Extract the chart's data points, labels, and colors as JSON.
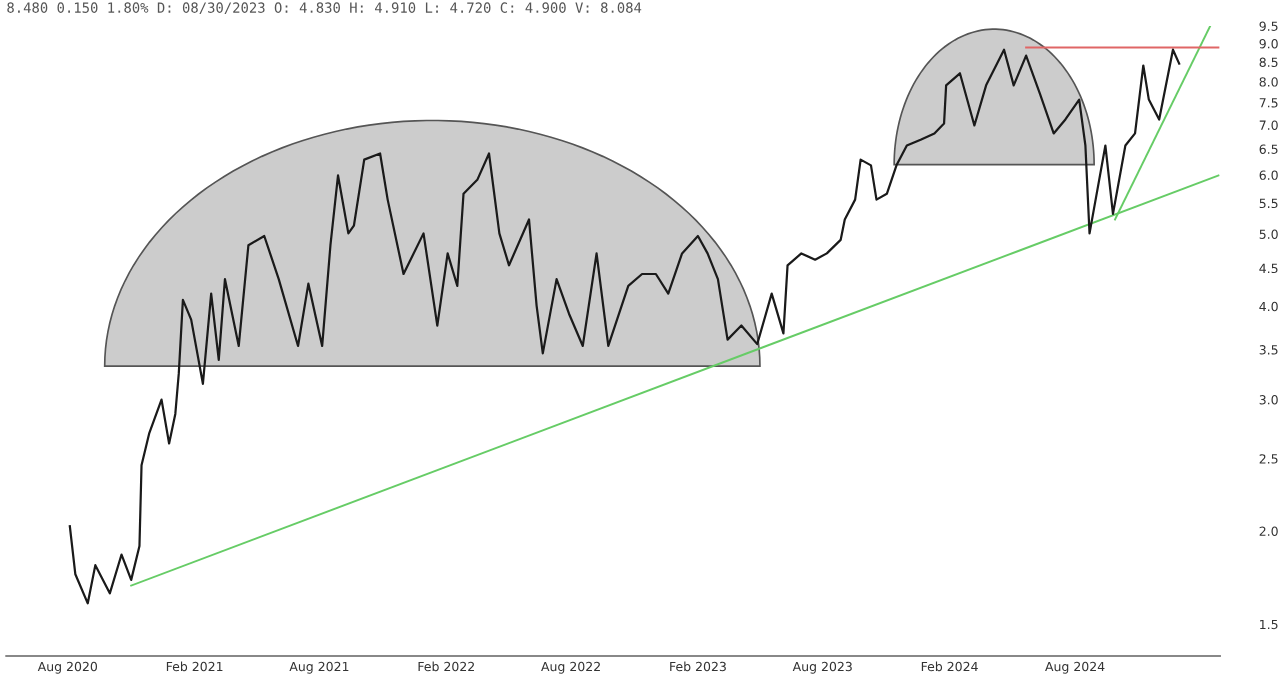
{
  "chart_data": {
    "type": "line",
    "title": "8.480 0.150 1.80% D: 08/30/2023 O: 4.830 H: 4.910 L: 4.720 C: 4.900 V: 8.084",
    "log": true,
    "grid": false,
    "legend": false,
    "marker": "none",
    "line_style": "solid",
    "xlim": [
      "2020-05-04",
      "2025-02-27"
    ],
    "xticks": [
      {
        "value": "2020-08-01",
        "label": "Aug 2020"
      },
      {
        "value": "2021-02-01",
        "label": "Feb 2021"
      },
      {
        "value": "2021-08-01",
        "label": "Aug 2021"
      },
      {
        "value": "2022-02-01",
        "label": "Feb 2022"
      },
      {
        "value": "2022-08-01",
        "label": "Aug 2022"
      },
      {
        "value": "2023-02-01",
        "label": "Feb 2023"
      },
      {
        "value": "2023-08-01",
        "label": "Aug 2023"
      },
      {
        "value": "2024-02-01",
        "label": "Feb 2024"
      },
      {
        "value": "2024-08-01",
        "label": "Aug 2024"
      }
    ],
    "ylim": [
      1.36,
      9.5
    ],
    "yticks": [
      1.5,
      {
        "value": 2,
        "label": "2.0"
      },
      2.5,
      {
        "value": 3,
        "label": "3.0"
      },
      3.5,
      {
        "value": 4,
        "label": "4.0"
      },
      4.5,
      {
        "value": 5,
        "label": "5.0"
      },
      5.5,
      {
        "value": 6,
        "label": "6.0"
      },
      6.5,
      {
        "value": 7,
        "label": "7.0"
      },
      7.5,
      {
        "value": 8,
        "label": "8.0"
      },
      8.5,
      {
        "value": 9,
        "label": "9.0"
      },
      9.5
    ],
    "series": [
      {
        "color": "#1a1a1a",
        "x": [
          "2020-08-04",
          "2020-08-12",
          "2020-08-30",
          "2020-09-10",
          "2020-10-01",
          "2020-10-18",
          "2020-11-01",
          "2020-11-13",
          "2020-11-16",
          "2020-11-27",
          "2020-12-15",
          "2020-12-26",
          "2021-01-04",
          "2021-01-09",
          "2021-01-15",
          "2021-01-27",
          "2021-02-13",
          "2021-02-25",
          "2021-03-08",
          "2021-03-17",
          "2021-04-06",
          "2021-04-20",
          "2021-05-13",
          "2021-06-03",
          "2021-07-01",
          "2021-07-16",
          "2021-08-05",
          "2021-08-17",
          "2021-08-28",
          "2021-09-12",
          "2021-09-20",
          "2021-10-05",
          "2021-10-28",
          "2021-11-08",
          "2021-12-01",
          "2021-12-30",
          "2022-01-19",
          "2022-02-03",
          "2022-02-17",
          "2022-02-26",
          "2022-03-18",
          "2022-04-04",
          "2022-04-19",
          "2022-05-03",
          "2022-06-01",
          "2022-06-12",
          "2022-06-21",
          "2022-07-11",
          "2022-07-29",
          "2022-08-18",
          "2022-09-07",
          "2022-09-24",
          "2022-10-23",
          "2022-11-12",
          "2022-12-02",
          "2022-12-20",
          "2023-01-09",
          "2023-02-01",
          "2023-02-15",
          "2023-03-02",
          "2023-03-16",
          "2023-04-05",
          "2023-04-28",
          "2023-05-19",
          "2023-06-05",
          "2023-06-11",
          "2023-07-01",
          "2023-07-21",
          "2023-08-07",
          "2023-08-27",
          "2023-09-02",
          "2023-09-17",
          "2023-09-25",
          "2023-10-10",
          "2023-10-18",
          "2023-11-02",
          "2023-11-16",
          "2023-12-01",
          "2023-12-21",
          "2024-01-10",
          "2024-01-24",
          "2024-01-27",
          "2024-02-16",
          "2024-03-08",
          "2024-03-25",
          "2024-04-20",
          "2024-05-04",
          "2024-05-22",
          "2024-06-11",
          "2024-07-01",
          "2024-07-18",
          "2024-08-07",
          "2024-08-16",
          "2024-08-22",
          "2024-09-05",
          "2024-09-14",
          "2024-09-25",
          "2024-10-13",
          "2024-10-27",
          "2024-11-08",
          "2024-11-16",
          "2024-12-01",
          "2024-12-21",
          "2024-12-30"
        ],
        "values": [
          2.03,
          1.75,
          1.6,
          1.8,
          1.65,
          1.86,
          1.72,
          1.91,
          2.45,
          2.7,
          3.0,
          2.62,
          2.87,
          3.25,
          4.08,
          3.84,
          3.15,
          4.16,
          3.39,
          4.35,
          3.54,
          4.83,
          4.97,
          4.35,
          3.54,
          4.29,
          3.54,
          4.83,
          5.99,
          5.01,
          5.13,
          6.29,
          6.41,
          5.56,
          4.42,
          5.01,
          3.77,
          4.71,
          4.26,
          5.66,
          5.91,
          6.41,
          5.01,
          4.54,
          5.23,
          4.01,
          3.46,
          4.35,
          3.91,
          3.54,
          4.71,
          3.54,
          4.26,
          4.42,
          4.42,
          4.16,
          4.71,
          4.97,
          4.71,
          4.35,
          3.61,
          3.77,
          3.56,
          4.16,
          3.68,
          4.54,
          4.71,
          4.62,
          4.71,
          4.91,
          5.23,
          5.56,
          6.29,
          6.18,
          5.56,
          5.66,
          6.18,
          6.57,
          6.69,
          6.82,
          7.03,
          7.91,
          8.21,
          6.99,
          7.91,
          8.83,
          7.91,
          8.67,
          7.71,
          6.82,
          7.12,
          7.57,
          6.57,
          5.01,
          5.91,
          6.57,
          5.32,
          6.57,
          6.82,
          8.41,
          7.57,
          7.12,
          8.83,
          8.46
        ]
      },
      {
        "color": "#66cc66",
        "x": [
          "2020-11-01",
          "2025-02-25"
        ],
        "values": [
          1.69,
          5.99
        ]
      },
      {
        "color": "#66cc66",
        "x": [
          "2024-09-28",
          "2025-02-13"
        ],
        "values": [
          5.23,
          9.5
        ]
      },
      {
        "color": "#e06666",
        "x": [
          "2024-05-22",
          "2025-02-25"
        ],
        "values": [
          8.89,
          8.89
        ]
      }
    ]
  }
}
